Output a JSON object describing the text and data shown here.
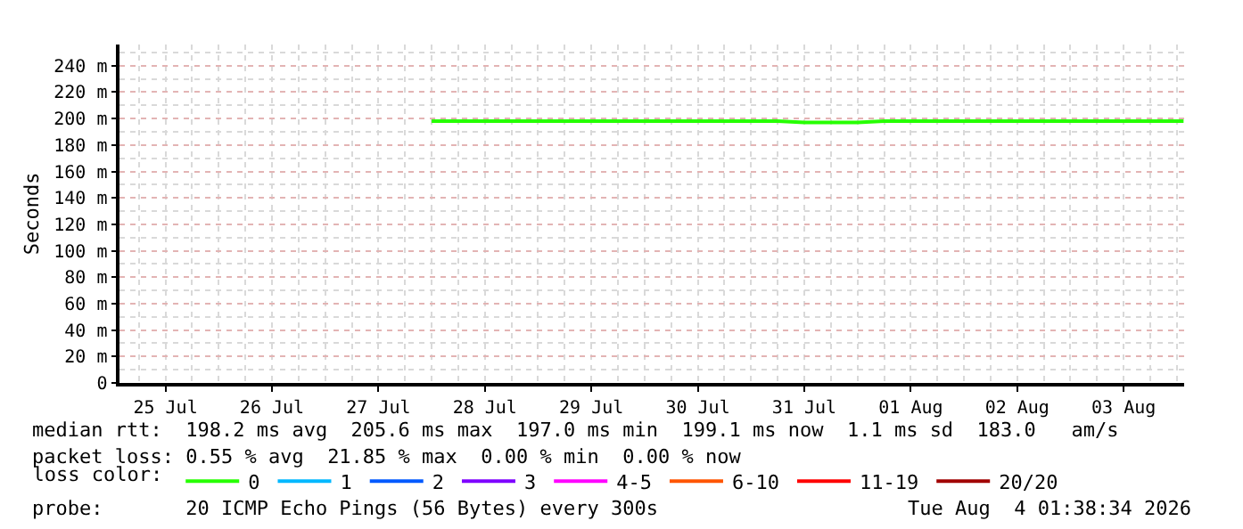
{
  "chart_data": {
    "type": "line",
    "ylabel": "Seconds",
    "x": [
      "--07-28T00:00",
      "--07-28T06:00",
      "--07-28T12:00",
      "--07-28T18:00",
      "--07-29T00:00",
      "--07-29T06:00",
      "--07-29T12:00",
      "--07-29T18:00",
      "--07-30T00:00",
      "--07-30T06:00",
      "--07-30T12:00",
      "--07-30T18:00",
      "--07-31T00:00",
      "--07-31T06:00",
      "--07-31T12:00",
      "--07-31T18:00",
      "--08-01T00:00",
      "--08-01T06:00",
      "--08-01T12:00",
      "--08-01T18:00",
      "--08-02T00:00",
      "--08-02T06:00",
      "--08-02T12:00",
      "--08-02T18:00",
      "--08-03T00:00",
      "--08-03T06:00",
      "--08-03T12:00",
      "--08-03T18:00",
      "--08-04T00:00",
      "--08-04T01:30"
    ],
    "series": [
      {
        "name": "0",
        "color": "#26ff00",
        "values": [
          198,
          198,
          198,
          198,
          198,
          198,
          198,
          198,
          198,
          198,
          198,
          198,
          198,
          198,
          197,
          197,
          197,
          198,
          198,
          198,
          198,
          198,
          198,
          198,
          198,
          198,
          198,
          198,
          198,
          198
        ]
      },
      {
        "name": "1",
        "color": "#00b8ff",
        "values": [
          null,
          null,
          null,
          null,
          null,
          null,
          null,
          null,
          null,
          null,
          null,
          null,
          null,
          null,
          null,
          null,
          null,
          null,
          null,
          null,
          null,
          null,
          null,
          null,
          null,
          null,
          null,
          null,
          null,
          null
        ]
      },
      {
        "name": "2",
        "color": "#0059ff",
        "values": [
          null,
          null,
          null,
          null,
          null,
          null,
          null,
          null,
          null,
          null,
          null,
          null,
          null,
          null,
          null,
          null,
          null,
          null,
          null,
          null,
          null,
          null,
          null,
          null,
          null,
          null,
          null,
          null,
          null,
          null
        ]
      },
      {
        "name": "3",
        "color": "#7e00ff",
        "values": [
          null,
          null,
          null,
          null,
          null,
          null,
          null,
          null,
          null,
          null,
          null,
          null,
          null,
          null,
          null,
          null,
          null,
          null,
          null,
          null,
          null,
          null,
          null,
          null,
          null,
          null,
          null,
          null,
          null,
          null
        ]
      },
      {
        "name": "4-5",
        "color": "#ff00ff",
        "values": [
          null,
          null,
          null,
          null,
          null,
          null,
          null,
          null,
          null,
          null,
          null,
          null,
          null,
          null,
          null,
          null,
          null,
          null,
          null,
          null,
          null,
          null,
          null,
          null,
          null,
          null,
          null,
          null,
          null,
          null
        ]
      },
      {
        "name": "6-10",
        "color": "#ff5500",
        "values": [
          null,
          null,
          null,
          null,
          null,
          null,
          null,
          null,
          null,
          null,
          null,
          null,
          null,
          null,
          null,
          null,
          null,
          null,
          null,
          null,
          null,
          null,
          null,
          null,
          null,
          null,
          null,
          null,
          null,
          null
        ]
      },
      {
        "name": "11-19",
        "color": "#ff0000",
        "values": [
          null,
          null,
          null,
          null,
          null,
          null,
          null,
          null,
          null,
          null,
          null,
          null,
          null,
          null,
          null,
          null,
          null,
          null,
          null,
          null,
          null,
          null,
          null,
          null,
          null,
          null,
          null,
          null,
          null,
          null
        ]
      },
      {
        "name": "20/20",
        "color": "#a10000",
        "values": [
          null,
          null,
          null,
          null,
          null,
          null,
          null,
          null,
          null,
          null,
          null,
          null,
          null,
          null,
          null,
          null,
          null,
          null,
          null,
          null,
          null,
          null,
          null,
          null,
          null,
          null,
          null,
          null,
          null,
          null
        ]
      }
    ],
    "xlim": [
      "--07-25T01:38",
      "--08-04T01:38"
    ],
    "xticks": [
      {
        "value": "--07-25T12:00",
        "label": "25 Jul"
      },
      {
        "value": "--07-26T12:00",
        "label": "26 Jul"
      },
      {
        "value": "--07-27T12:00",
        "label": "27 Jul"
      },
      {
        "value": "--07-28T12:00",
        "label": "28 Jul"
      },
      {
        "value": "--07-29T12:00",
        "label": "29 Jul"
      },
      {
        "value": "--07-30T12:00",
        "label": "30 Jul"
      },
      {
        "value": "--07-31T12:00",
        "label": "31 Jul"
      },
      {
        "value": "--08-01T12:00",
        "label": "01 Aug"
      },
      {
        "value": "--08-02T12:00",
        "label": "02 Aug"
      },
      {
        "value": "--08-03T12:00",
        "label": "03 Aug"
      }
    ],
    "ylim": [
      0,
      256
    ],
    "yticks": [
      0,
      {
        "value": 20,
        "label": "20 m"
      },
      {
        "value": 40,
        "label": "40 m"
      },
      {
        "value": 60,
        "label": "60 m"
      },
      {
        "value": 80,
        "label": "80 m"
      },
      {
        "value": 100,
        "label": "100 m"
      },
      {
        "value": 120,
        "label": "120 m"
      },
      {
        "value": 140,
        "label": "140 m"
      },
      {
        "value": 160,
        "label": "160 m"
      },
      {
        "value": 180,
        "label": "180 m"
      },
      {
        "value": 200,
        "label": "200 m"
      },
      {
        "value": 220,
        "label": "220 m"
      },
      {
        "value": 240,
        "label": "240 m"
      }
    ],
    "grid": true,
    "legend": "bottom",
    "legend_title": "loss color:",
    "marker": "none",
    "line_style": "solid",
    "annotations": [
      "median rtt:  198.2 ms avg  205.6 ms max  197.0 ms min  199.1 ms now  1.1 ms sd  183.0   am/s",
      "packet loss: 0.55 % avg  21.85 % max  0.00 % min  0.00 % now",
      "probe:       20 ICMP Echo Pings (56 Bytes) every 300s",
      "Tue Aug  4 01:38:34 2026"
    ]
  }
}
